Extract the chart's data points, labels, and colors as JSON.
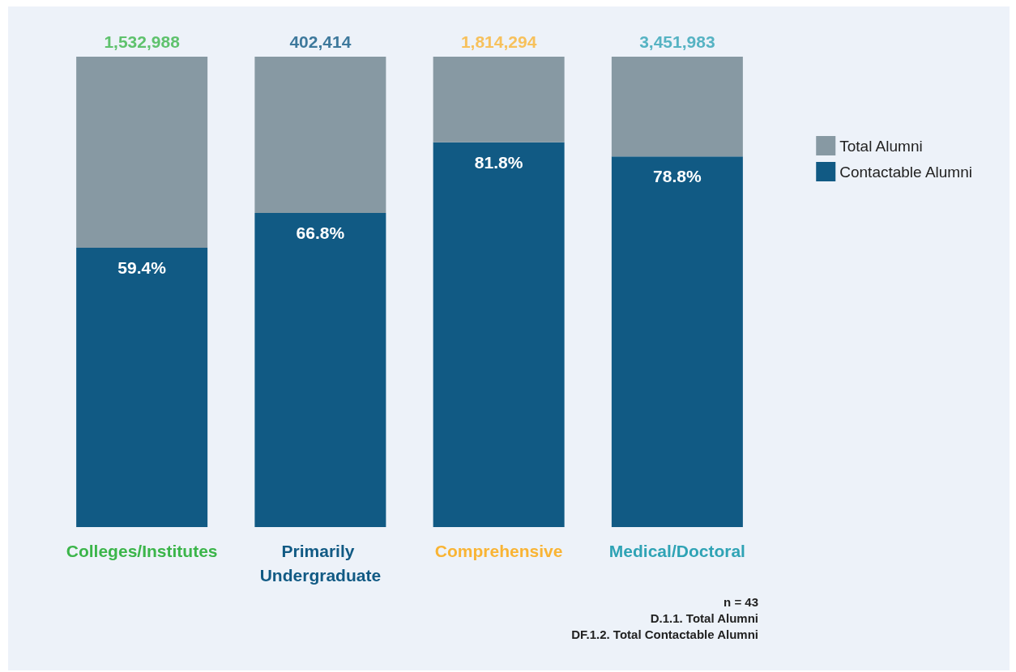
{
  "chart_data": {
    "type": "bar",
    "stacked": true,
    "categories": [
      "Colleges/Institutes",
      "Primarily Undergraduate",
      "Comprehensive",
      "Medical/Doctoral"
    ],
    "series": [
      {
        "name": "Contactable Alumni",
        "color": "#115a84",
        "values": [
          59.4,
          66.8,
          81.8,
          78.8
        ],
        "value_labels": [
          "59.4%",
          "66.8%",
          "81.8%",
          "78.8%"
        ]
      },
      {
        "name": "Total Alumni",
        "color": "#8799a3",
        "values": [
          40.6,
          33.2,
          18.2,
          21.2
        ]
      }
    ],
    "ylim": [
      0,
      100
    ],
    "tick_labels": "x",
    "legend": "right",
    "annotations": [
      {
        "text": "1,532,988",
        "x": "Colleges/Institutes",
        "y": 100
      },
      {
        "text": "402,414",
        "x": "Primarily Undergraduate",
        "y": 100
      },
      {
        "text": "1,814,294",
        "x": "Comprehensive",
        "y": 100
      },
      {
        "text": "3,451,983",
        "x": "Medical/Doctoral",
        "y": 100
      },
      "n = 43",
      "D.1.1. Total Alumni",
      "DF.1.2. Total Contactable Alumni"
    ]
  }
}
